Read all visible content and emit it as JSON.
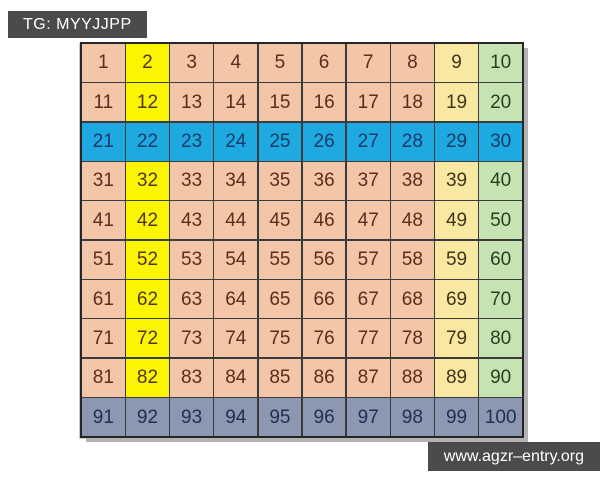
{
  "tag_overlay": {
    "label": "TG: MYYJJPP"
  },
  "url_overlay": {
    "label": "www.agzr–entry.org"
  },
  "grid": {
    "rows": 10,
    "cols": 10,
    "palette": {
      "peach": {
        "bg": "#f2c6a6",
        "text": "#5e2b1d"
      },
      "yellow": {
        "bg": "#fbf502",
        "text": "#54331d"
      },
      "blue": {
        "bg": "#1ea9e1",
        "text": "#183a68"
      },
      "cream": {
        "bg": "#f9e8a2",
        "text": "#443319"
      },
      "green": {
        "bg": "#c8e3b3",
        "text": "#284020"
      },
      "gray": {
        "bg": "#8c98b2",
        "text": "#212f56"
      }
    },
    "cells": [
      {
        "n": 1,
        "color": "peach"
      },
      {
        "n": 2,
        "color": "yellow"
      },
      {
        "n": 3,
        "color": "peach"
      },
      {
        "n": 4,
        "color": "peach"
      },
      {
        "n": 5,
        "color": "peach"
      },
      {
        "n": 6,
        "color": "peach"
      },
      {
        "n": 7,
        "color": "peach"
      },
      {
        "n": 8,
        "color": "peach"
      },
      {
        "n": 9,
        "color": "cream"
      },
      {
        "n": 10,
        "color": "green"
      },
      {
        "n": 11,
        "color": "peach"
      },
      {
        "n": 12,
        "color": "yellow"
      },
      {
        "n": 13,
        "color": "peach"
      },
      {
        "n": 14,
        "color": "peach"
      },
      {
        "n": 15,
        "color": "peach"
      },
      {
        "n": 16,
        "color": "peach"
      },
      {
        "n": 17,
        "color": "peach"
      },
      {
        "n": 18,
        "color": "peach"
      },
      {
        "n": 19,
        "color": "cream"
      },
      {
        "n": 20,
        "color": "green"
      },
      {
        "n": 21,
        "color": "blue"
      },
      {
        "n": 22,
        "color": "blue"
      },
      {
        "n": 23,
        "color": "blue"
      },
      {
        "n": 24,
        "color": "blue"
      },
      {
        "n": 25,
        "color": "blue"
      },
      {
        "n": 26,
        "color": "blue"
      },
      {
        "n": 27,
        "color": "blue"
      },
      {
        "n": 28,
        "color": "blue"
      },
      {
        "n": 29,
        "color": "blue"
      },
      {
        "n": 30,
        "color": "blue"
      },
      {
        "n": 31,
        "color": "peach"
      },
      {
        "n": 32,
        "color": "yellow"
      },
      {
        "n": 33,
        "color": "peach"
      },
      {
        "n": 34,
        "color": "peach"
      },
      {
        "n": 35,
        "color": "peach"
      },
      {
        "n": 36,
        "color": "peach"
      },
      {
        "n": 37,
        "color": "peach"
      },
      {
        "n": 38,
        "color": "peach"
      },
      {
        "n": 39,
        "color": "cream"
      },
      {
        "n": 40,
        "color": "green"
      },
      {
        "n": 41,
        "color": "peach"
      },
      {
        "n": 42,
        "color": "yellow"
      },
      {
        "n": 43,
        "color": "peach"
      },
      {
        "n": 44,
        "color": "peach"
      },
      {
        "n": 45,
        "color": "peach"
      },
      {
        "n": 46,
        "color": "peach"
      },
      {
        "n": 47,
        "color": "peach"
      },
      {
        "n": 48,
        "color": "peach"
      },
      {
        "n": 49,
        "color": "cream"
      },
      {
        "n": 50,
        "color": "green"
      },
      {
        "n": 51,
        "color": "peach"
      },
      {
        "n": 52,
        "color": "yellow"
      },
      {
        "n": 53,
        "color": "peach"
      },
      {
        "n": 54,
        "color": "peach"
      },
      {
        "n": 55,
        "color": "peach"
      },
      {
        "n": 56,
        "color": "peach"
      },
      {
        "n": 57,
        "color": "peach"
      },
      {
        "n": 58,
        "color": "peach"
      },
      {
        "n": 59,
        "color": "cream"
      },
      {
        "n": 60,
        "color": "green"
      },
      {
        "n": 61,
        "color": "peach"
      },
      {
        "n": 62,
        "color": "yellow"
      },
      {
        "n": 63,
        "color": "peach"
      },
      {
        "n": 64,
        "color": "peach"
      },
      {
        "n": 65,
        "color": "peach"
      },
      {
        "n": 66,
        "color": "peach"
      },
      {
        "n": 67,
        "color": "peach"
      },
      {
        "n": 68,
        "color": "peach"
      },
      {
        "n": 69,
        "color": "cream"
      },
      {
        "n": 70,
        "color": "green"
      },
      {
        "n": 71,
        "color": "peach"
      },
      {
        "n": 72,
        "color": "yellow"
      },
      {
        "n": 73,
        "color": "peach"
      },
      {
        "n": 74,
        "color": "peach"
      },
      {
        "n": 75,
        "color": "peach"
      },
      {
        "n": 76,
        "color": "peach"
      },
      {
        "n": 77,
        "color": "peach"
      },
      {
        "n": 78,
        "color": "peach"
      },
      {
        "n": 79,
        "color": "cream"
      },
      {
        "n": 80,
        "color": "green"
      },
      {
        "n": 81,
        "color": "peach"
      },
      {
        "n": 82,
        "color": "yellow"
      },
      {
        "n": 83,
        "color": "peach"
      },
      {
        "n": 84,
        "color": "peach"
      },
      {
        "n": 85,
        "color": "peach"
      },
      {
        "n": 86,
        "color": "peach"
      },
      {
        "n": 87,
        "color": "peach"
      },
      {
        "n": 88,
        "color": "peach"
      },
      {
        "n": 89,
        "color": "cream"
      },
      {
        "n": 90,
        "color": "green"
      },
      {
        "n": 91,
        "color": "gray"
      },
      {
        "n": 92,
        "color": "gray"
      },
      {
        "n": 93,
        "color": "gray"
      },
      {
        "n": 94,
        "color": "gray"
      },
      {
        "n": 95,
        "color": "gray"
      },
      {
        "n": 96,
        "color": "gray"
      },
      {
        "n": 97,
        "color": "gray"
      },
      {
        "n": 98,
        "color": "gray"
      },
      {
        "n": 99,
        "color": "gray"
      },
      {
        "n": 100,
        "color": "gray"
      }
    ]
  }
}
